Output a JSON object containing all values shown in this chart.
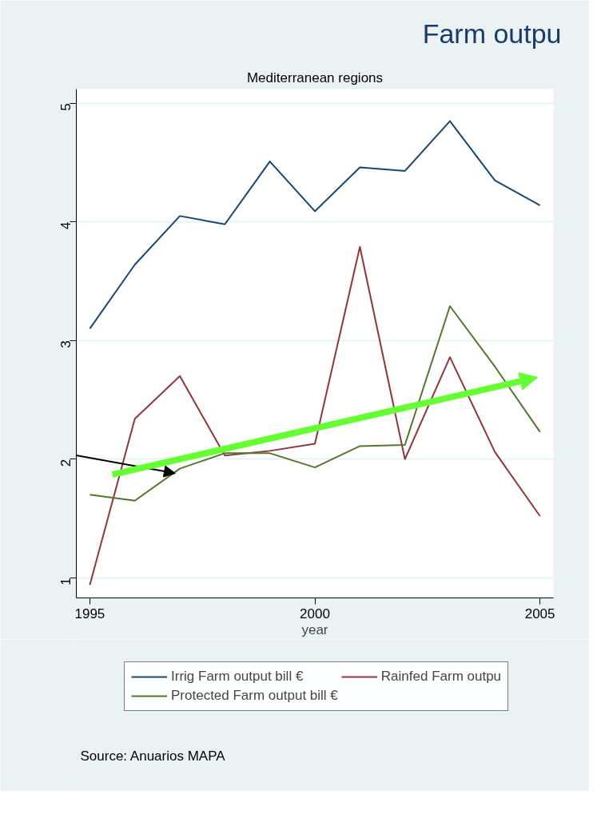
{
  "chart_data": {
    "type": "line",
    "title": "Farm outpu",
    "subtitle": "Mediterranean regions",
    "xlabel": "year",
    "x": [
      1995,
      1996,
      1997,
      1998,
      1999,
      2000,
      2001,
      2002,
      2003,
      2004,
      2005
    ],
    "series": [
      {
        "name": "Irrig Farm output bill €",
        "color": "#1a476f",
        "values": [
          3.1,
          3.64,
          4.05,
          3.98,
          4.51,
          4.09,
          4.46,
          4.43,
          4.85,
          4.35,
          4.14
        ]
      },
      {
        "name": "Rainfed Farm outpu",
        "color": "#90353b",
        "values": [
          0.94,
          2.34,
          2.7,
          2.03,
          2.07,
          2.13,
          3.79,
          2.0,
          2.86,
          2.06,
          1.52
        ]
      },
      {
        "name": "Protected Farm output bill €",
        "color": "#55752f",
        "values": [
          1.7,
          1.65,
          1.92,
          2.05,
          2.05,
          1.93,
          2.11,
          2.12,
          3.29,
          2.78,
          2.23
        ]
      }
    ],
    "xlim": [
      1994.7,
      2005.3
    ],
    "ylim": [
      0.83,
      5.12
    ],
    "xticks": [
      1995,
      2000,
      2005
    ],
    "yticks": [
      1,
      2,
      3,
      4,
      5
    ],
    "grid": "y",
    "legend": "bottom",
    "line_style": "solid",
    "annotations": [
      "Source: Anuarios MAPA"
    ]
  }
}
